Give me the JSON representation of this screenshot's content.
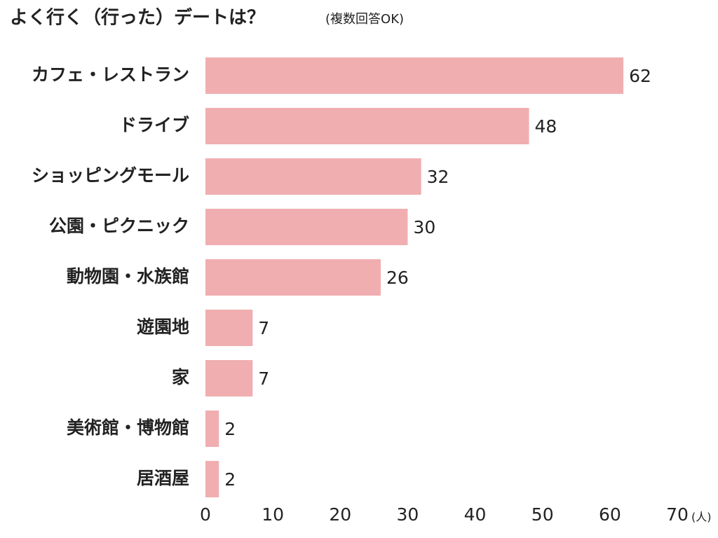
{
  "chart_data": {
    "type": "bar",
    "orientation": "horizontal",
    "title": "よく行く（行った）デートは？",
    "subtitle": "(複数回答OK)",
    "xlabel": "(人)",
    "categories": [
      "カフェ・レストラン",
      "ドライブ",
      "ショッピングモール",
      "公園・ピクニック",
      "動物園・水族館",
      "遊園地",
      "家",
      "美術館・博物館",
      "居酒屋"
    ],
    "values": [
      62,
      48,
      32,
      30,
      26,
      7,
      7,
      2,
      2
    ],
    "color": "#f0aeb0",
    "xlim": [
      0,
      70
    ],
    "xticks": [
      0,
      10,
      20,
      30,
      40,
      50,
      60,
      70
    ]
  }
}
